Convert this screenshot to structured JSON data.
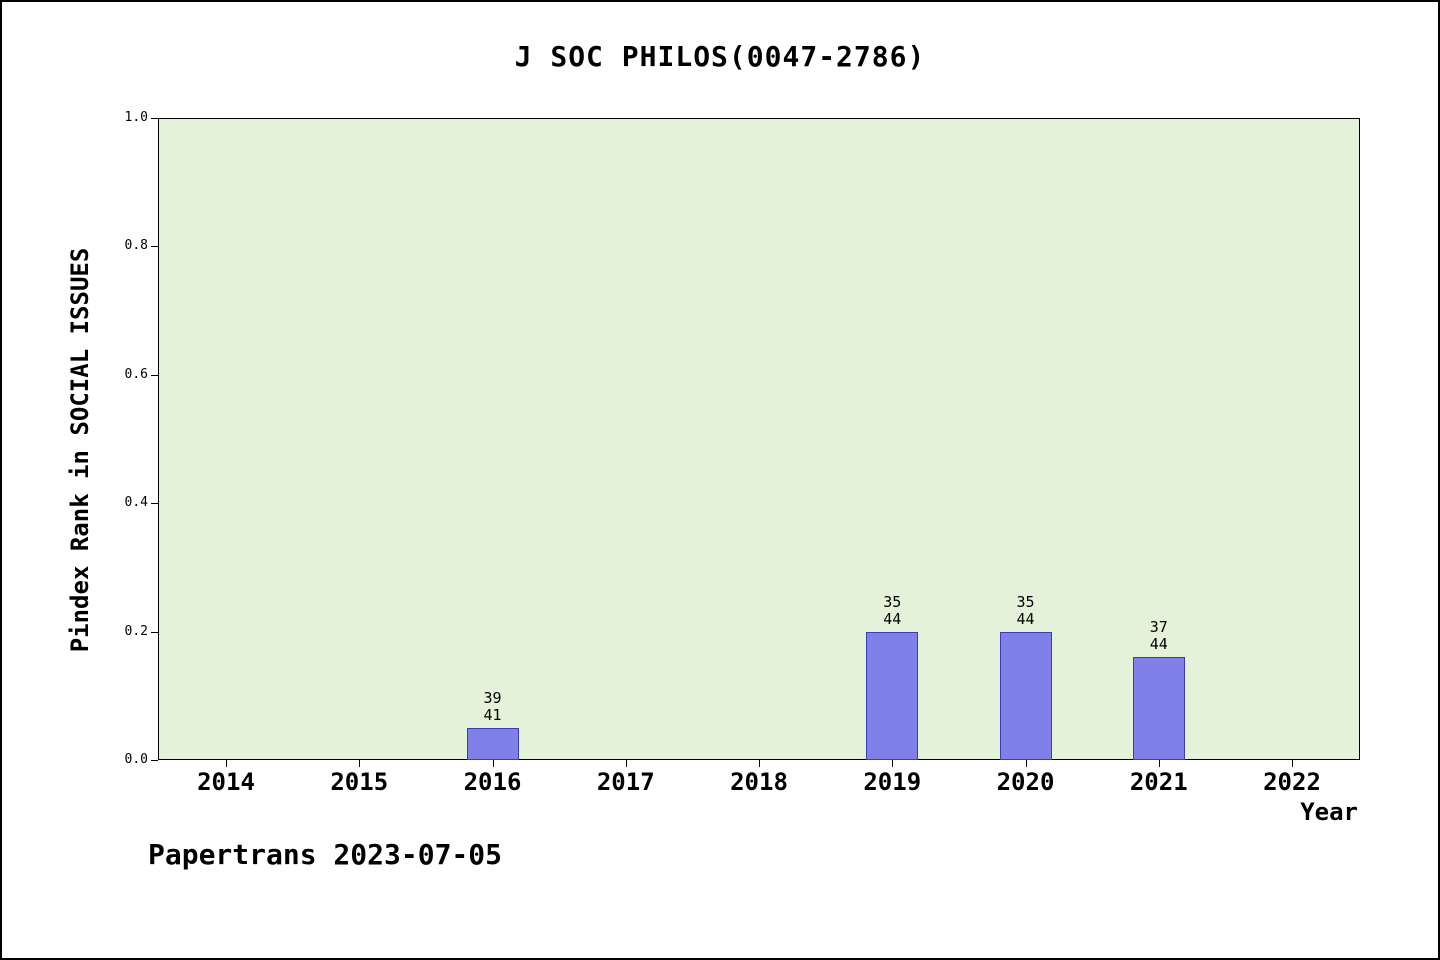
{
  "chart_data": {
    "type": "bar",
    "title": "J SOC PHILOS(0047-2786)",
    "xlabel": "Year",
    "ylabel": "Pindex Rank in SOCIAL ISSUES",
    "ylim": [
      0.0,
      1.0
    ],
    "yticks": [
      0.0,
      0.2,
      0.4,
      0.6,
      0.8,
      1.0
    ],
    "categories": [
      "2014",
      "2015",
      "2016",
      "2017",
      "2018",
      "2019",
      "2020",
      "2021",
      "2022"
    ],
    "bars": [
      {
        "year": "2016",
        "value": 0.05,
        "rank": "39",
        "total": "41"
      },
      {
        "year": "2019",
        "value": 0.2,
        "rank": "35",
        "total": "44"
      },
      {
        "year": "2020",
        "value": 0.2,
        "rank": "35",
        "total": "44"
      },
      {
        "year": "2021",
        "value": 0.16,
        "rank": "37",
        "total": "44"
      }
    ],
    "legend": null,
    "grid": false,
    "colors": {
      "plot_bg": "#e5f2da",
      "bar_fill": "#8080e8",
      "bar_border": "#3c3cb4"
    }
  },
  "footer": {
    "text": "Papertrans 2023-07-05"
  }
}
